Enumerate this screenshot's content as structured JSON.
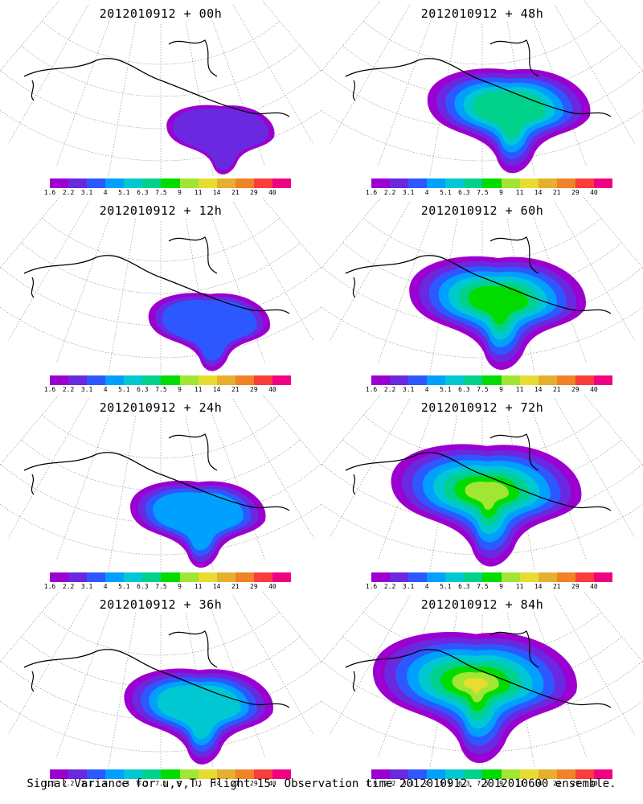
{
  "panels": [
    {
      "title": "2012010912 + 00h",
      "level": 0
    },
    {
      "title": "2012010912 + 48h",
      "level": 4
    },
    {
      "title": "2012010912 + 12h",
      "level": 1
    },
    {
      "title": "2012010912 + 60h",
      "level": 5
    },
    {
      "title": "2012010912 + 24h",
      "level": 2
    },
    {
      "title": "2012010912 + 72h",
      "level": 6
    },
    {
      "title": "2012010912 + 36h",
      "level": 3
    },
    {
      "title": "2012010912 + 84h",
      "level": 7
    }
  ],
  "colorbar": {
    "labels": [
      "1.6",
      "2.2",
      "3.1",
      "4",
      "5.1",
      "6.3",
      "7.5",
      "9",
      "11",
      "14",
      "21",
      "29",
      "40"
    ],
    "colors": [
      "#9b00d0",
      "#6a28e0",
      "#2e58ff",
      "#00a0ff",
      "#00c8d2",
      "#00d28c",
      "#00dc00",
      "#a0e632",
      "#e6dc32",
      "#e6af2d",
      "#f08228",
      "#fa3c3c",
      "#f00082"
    ]
  },
  "footer": "Signal Variance for u,v,T. Flight 15. Observation time 2012010912. 2012010600 ensemble."
}
